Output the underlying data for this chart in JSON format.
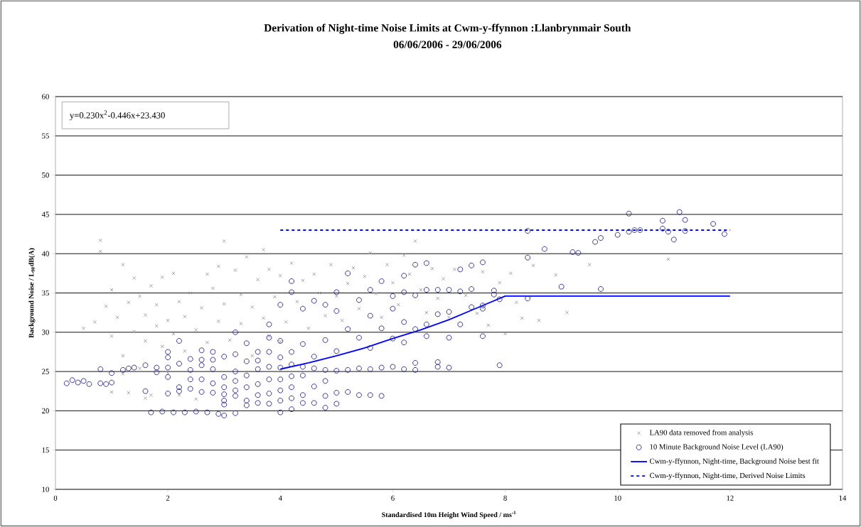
{
  "chart_data": {
    "type": "scatter",
    "title": "Derivation of Night-time  Noise Limits at Cwm-y-ffynnon :Llanbrynmair South",
    "subtitle": "06/06/2006 - 29/06/2006",
    "xlabel": "Standardised 10m Height Wind Speed / ms$^{-1}$",
    "ylabel": "Background Noise / L$_{90}$dB(A)",
    "annotations": [
      "y=0.230x$^{2}$-0.446x+23.430"
    ],
    "xlim": [
      0,
      14
    ],
    "ylim": [
      10,
      60
    ],
    "xticks": [
      0,
      2,
      4,
      6,
      8,
      10,
      12,
      14
    ],
    "yticks": [
      10,
      15,
      20,
      25,
      30,
      35,
      40,
      45,
      50,
      55,
      60
    ],
    "grid": "y",
    "legend": "bottom right",
    "series": [
      {
        "name": "LA90 data removed from analysis",
        "marker": "cross",
        "color": "#9a9a9a",
        "x": [
          0.5,
          0.7,
          0.8,
          0.8,
          0.9,
          1.0,
          1.0,
          1.1,
          1.2,
          1.2,
          1.3,
          1.3,
          1.4,
          1.4,
          1.5,
          1.5,
          1.6,
          1.6,
          1.7,
          1.7,
          1.8,
          1.8,
          1.9,
          1.9,
          2.0,
          2.0,
          2.1,
          2.1,
          2.2,
          2.3,
          2.3,
          2.4,
          2.5,
          2.5,
          2.6,
          2.7,
          2.7,
          2.8,
          2.9,
          2.9,
          3.0,
          3.0,
          3.1,
          3.2,
          3.3,
          3.3,
          3.4,
          3.5,
          3.6,
          3.7,
          3.7,
          3.8,
          3.8,
          3.9,
          4.0,
          4.1,
          4.2,
          4.3,
          4.4,
          4.5,
          4.6,
          4.7,
          4.8,
          4.9,
          5.0,
          5.1,
          5.2,
          5.3,
          5.4,
          5.5,
          5.6,
          5.7,
          5.8,
          5.9,
          6.0,
          6.1,
          6.2,
          6.3,
          6.4,
          6.5,
          6.6,
          6.7,
          6.8,
          6.9,
          7.0,
          7.1,
          7.3,
          7.5,
          7.6,
          7.7,
          7.9,
          8.0,
          8.1,
          8.2,
          8.3,
          8.5,
          8.6,
          8.9,
          9.1,
          9.5,
          10.9,
          1.2,
          1.0,
          2.2,
          1.6,
          3.5,
          4.0
        ],
        "values": [
          30.5,
          31.3,
          41.7,
          40.3,
          33.3,
          35.4,
          29.5,
          31.9,
          38.6,
          27.0,
          33.8,
          22.3,
          36.9,
          30.1,
          34.6,
          25.4,
          28.9,
          32.2,
          35.9,
          22.0,
          30.8,
          33.5,
          37.0,
          28.2,
          31.5,
          24.8,
          37.5,
          29.8,
          33.9,
          32.0,
          27.6,
          35.0,
          30.3,
          21.5,
          33.1,
          37.4,
          28.7,
          35.6,
          38.4,
          31.4,
          41.6,
          33.6,
          29.0,
          37.9,
          34.8,
          31.1,
          39.6,
          33.2,
          36.7,
          40.5,
          31.8,
          38.0,
          29.5,
          34.5,
          37.2,
          31.3,
          38.8,
          33.9,
          36.6,
          30.5,
          37.4,
          35.0,
          32.1,
          38.6,
          34.6,
          31.5,
          36.2,
          38.2,
          33.0,
          37.1,
          40.1,
          34.9,
          31.9,
          38.6,
          36.3,
          33.5,
          39.8,
          37.4,
          41.6,
          35.4,
          32.5,
          38.1,
          34.3,
          36.8,
          31.9,
          38.0,
          34.7,
          32.4,
          37.7,
          30.9,
          36.3,
          29.8,
          37.5,
          33.8,
          31.8,
          38.5,
          31.5,
          37.3,
          32.5,
          38.6,
          39.3,
          24.7,
          22.4,
          22.0,
          21.6,
          27.0,
          28.8
        ]
      },
      {
        "name": "10 Minute Background Noise Level (LA90)",
        "marker": "circle",
        "color": "#2b2b8c",
        "x": [
          0.2,
          0.3,
          0.4,
          0.5,
          0.6,
          0.8,
          0.9,
          1.0,
          0.8,
          1.0,
          1.2,
          1.4,
          1.3,
          1.7,
          1.9,
          2.1,
          2.3,
          2.5,
          2.7,
          2.9,
          3.0,
          3.2,
          1.6,
          1.6,
          1.8,
          1.8,
          2.0,
          2.0,
          2.0,
          2.0,
          2.0,
          2.2,
          2.2,
          2.2,
          2.2,
          2.4,
          2.4,
          2.4,
          2.4,
          2.6,
          2.6,
          2.6,
          2.6,
          2.6,
          2.8,
          2.8,
          2.8,
          2.8,
          2.8,
          3.0,
          3.0,
          3.0,
          3.0,
          3.0,
          3.0,
          3.2,
          3.2,
          3.2,
          3.2,
          3.2,
          3.2,
          3.4,
          3.4,
          3.4,
          3.4,
          3.4,
          3.4,
          3.6,
          3.6,
          3.6,
          3.6,
          3.6,
          3.6,
          3.8,
          3.8,
          3.8,
          3.8,
          3.8,
          3.8,
          3.8,
          4.0,
          4.0,
          4.0,
          4.0,
          4.0,
          4.0,
          4.0,
          4.0,
          4.2,
          4.2,
          4.2,
          4.2,
          4.2,
          4.2,
          4.2,
          4.2,
          4.4,
          4.4,
          4.4,
          4.4,
          4.4,
          4.4,
          4.6,
          4.6,
          4.6,
          4.6,
          4.6,
          4.8,
          4.8,
          4.8,
          4.8,
          4.8,
          4.8,
          5.0,
          5.0,
          5.0,
          5.0,
          5.0,
          5.0,
          5.2,
          5.2,
          5.2,
          5.2,
          5.4,
          5.4,
          5.4,
          5.4,
          5.6,
          5.6,
          5.6,
          5.6,
          5.6,
          5.8,
          5.8,
          5.8,
          5.8,
          6.0,
          6.0,
          6.0,
          6.0,
          6.2,
          6.2,
          6.2,
          6.2,
          6.2,
          6.4,
          6.4,
          6.4,
          6.4,
          6.4,
          6.6,
          6.6,
          6.6,
          6.6,
          6.8,
          6.8,
          6.8,
          6.8,
          7.0,
          7.0,
          7.0,
          7.0,
          7.2,
          7.2,
          7.2,
          7.4,
          7.4,
          7.4,
          7.6,
          7.6,
          7.6,
          7.6,
          7.8,
          7.8,
          7.9,
          7.9,
          8.4,
          8.4,
          8.4,
          8.7,
          9.0,
          9.2,
          9.3,
          9.6,
          9.7,
          9.7,
          10.0,
          10.2,
          10.2,
          10.3,
          10.4,
          10.8,
          10.8,
          10.9,
          11.0,
          11.1,
          11.2,
          11.2,
          11.7,
          11.9
        ],
        "values": [
          23.5,
          23.9,
          23.6,
          23.8,
          23.4,
          23.5,
          23.4,
          23.6,
          25.3,
          24.8,
          25.2,
          25.5,
          25.4,
          19.8,
          19.9,
          19.8,
          19.8,
          19.9,
          19.8,
          19.6,
          19.4,
          19.7,
          25.8,
          22.5,
          25.5,
          24.9,
          27.5,
          26.8,
          22.2,
          24.3,
          25.5,
          28.9,
          26.0,
          23.0,
          22.5,
          26.6,
          25.2,
          22.8,
          24.0,
          27.7,
          26.5,
          24.0,
          22.4,
          25.8,
          27.5,
          25.3,
          23.5,
          22.3,
          26.5,
          26.9,
          24.3,
          23.0,
          22.1,
          21.3,
          20.8,
          30.0,
          27.2,
          25.0,
          23.8,
          22.6,
          21.9,
          28.6,
          26.3,
          24.5,
          23.0,
          21.3,
          20.7,
          27.5,
          26.4,
          25.3,
          23.4,
          22.0,
          21.0,
          31.0,
          29.3,
          27.5,
          25.6,
          24.0,
          22.2,
          20.9,
          33.5,
          28.9,
          26.8,
          25.5,
          24.0,
          22.6,
          21.3,
          19.8,
          36.5,
          35.1,
          27.5,
          25.9,
          24.4,
          23.0,
          21.6,
          20.2,
          33.0,
          28.5,
          25.6,
          24.5,
          22.0,
          21.0,
          34.0,
          26.9,
          25.4,
          23.1,
          21.0,
          33.5,
          29.0,
          25.2,
          23.8,
          21.9,
          20.4,
          35.1,
          32.7,
          27.6,
          25.1,
          22.3,
          20.9,
          37.5,
          30.4,
          25.2,
          22.4,
          34.1,
          29.3,
          25.4,
          22.0,
          35.4,
          32.1,
          28.0,
          25.3,
          22.0,
          36.5,
          30.5,
          25.5,
          21.9,
          34.6,
          33.0,
          29.2,
          25.6,
          37.2,
          35.1,
          31.3,
          28.7,
          25.3,
          38.6,
          34.7,
          30.4,
          26.1,
          25.2,
          38.8,
          35.4,
          31.0,
          29.5,
          35.4,
          32.3,
          25.6,
          26.2,
          35.4,
          32.6,
          29.3,
          25.5,
          38.0,
          35.2,
          31.0,
          38.5,
          35.5,
          33.2,
          38.9,
          33.4,
          29.5,
          33.0,
          35.3,
          34.8,
          25.8,
          34.2,
          34.3,
          39.5,
          42.9,
          40.6,
          35.8,
          40.2,
          40.1,
          41.5,
          42.0,
          35.5,
          42.4,
          42.8,
          45.1,
          43.0,
          43.0,
          44.2,
          43.2,
          42.8,
          41.8,
          45.3,
          42.9,
          44.3,
          43.8,
          42.5
        ]
      },
      {
        "name": "Cwm-y-ffynnon, Night-time,  Background Noise best fit",
        "type": "line",
        "marker": "none",
        "line_style": "solid",
        "color": "#0000ff",
        "x": [
          4,
          4.5,
          5,
          5.5,
          6,
          6.5,
          7,
          7.5,
          8,
          12
        ],
        "values": [
          25.3,
          26.1,
          27.0,
          28.0,
          29.2,
          30.3,
          31.6,
          33.1,
          34.6,
          34.6
        ]
      },
      {
        "name": "Cwm-y-ffynnon, Night-time,  Derived Noise Limits",
        "type": "line",
        "marker": "none",
        "line_style": "dashed",
        "color": "#0000ff",
        "x": [
          4,
          12
        ],
        "values": [
          43,
          43
        ]
      }
    ]
  }
}
